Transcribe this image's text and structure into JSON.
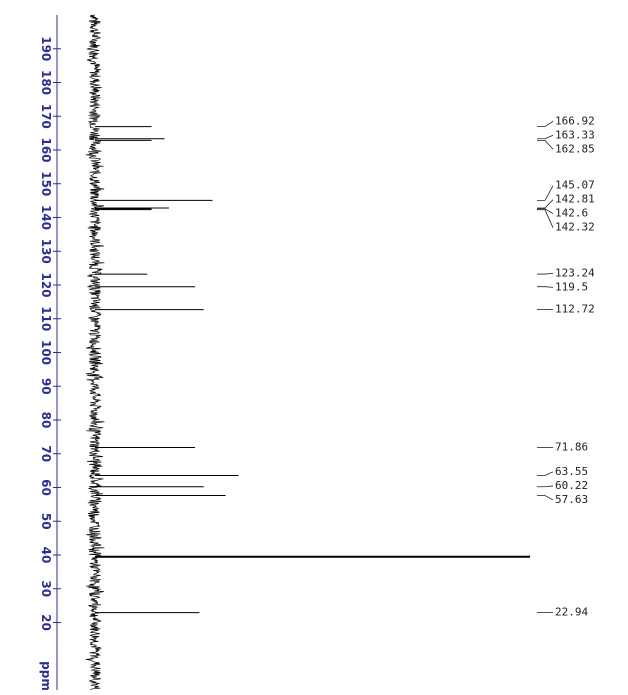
{
  "chart_data": {
    "type": "nmr",
    "y_label": "ppm",
    "x": [
      166.92,
      163.33,
      162.85,
      145.07,
      142.81,
      142.6,
      142.32,
      123.24,
      119.5,
      112.72,
      71.86,
      63.55,
      60.22,
      57.63,
      39.5,
      22.94
    ],
    "values": [
      13,
      16,
      13,
      27,
      17,
      13,
      13,
      12,
      23,
      25,
      23,
      33,
      25,
      30,
      100,
      24
    ],
    "labeled": [
      true,
      true,
      true,
      true,
      true,
      true,
      true,
      true,
      true,
      true,
      true,
      true,
      true,
      true,
      false,
      true
    ],
    "ylim": [
      0,
      200
    ],
    "yticks": [
      20,
      30,
      40,
      50,
      60,
      70,
      80,
      90,
      100,
      110,
      120,
      130,
      140,
      150,
      160,
      170,
      180,
      190
    ],
    "vlim": [
      0,
      100
    ],
    "color": "#000000",
    "axis_color": "#2b2f8f"
  }
}
